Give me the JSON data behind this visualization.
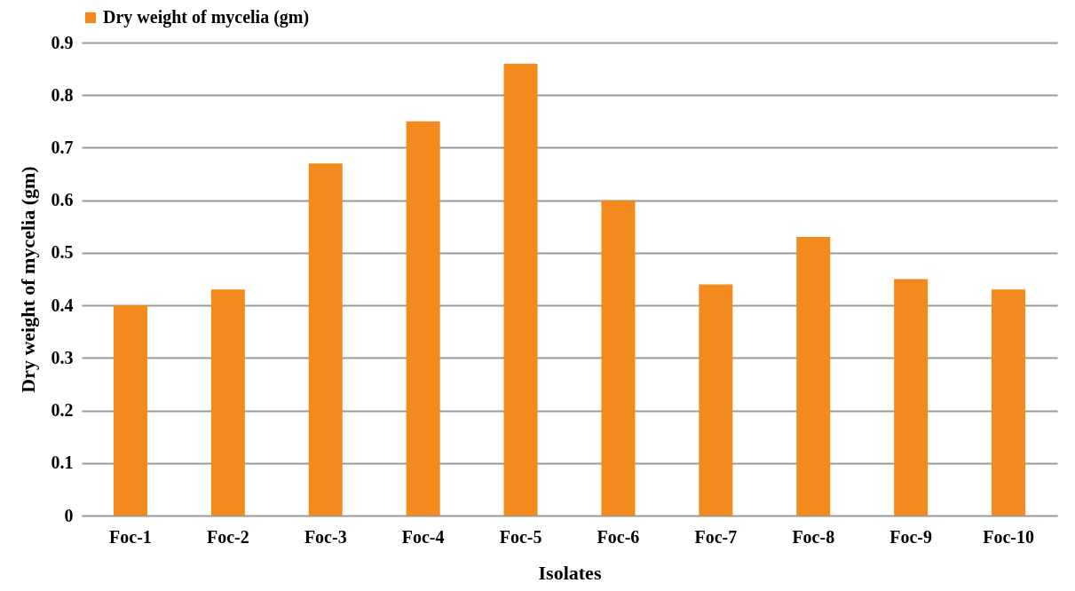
{
  "chart_data": {
    "type": "bar",
    "xlabel": "Isolates",
    "ylabel": "Dry weight of mycelia (gm)",
    "categories": [
      "Foc-1",
      "Foc-2",
      "Foc-3",
      "Foc-4",
      "Foc-5",
      "Foc-6",
      "Foc-7",
      "Foc-8",
      "Foc-9",
      "Foc-10"
    ],
    "series": [
      {
        "name": "Dry weight of mycelia (gm)",
        "color": "#f28a1e",
        "values": [
          0.4,
          0.43,
          0.67,
          0.75,
          0.86,
          0.6,
          0.44,
          0.53,
          0.45,
          0.43
        ]
      }
    ],
    "ylim": [
      0,
      0.9
    ],
    "yticks": [
      0,
      0.1,
      0.2,
      0.3,
      0.4,
      0.5,
      0.6,
      0.7,
      0.8,
      0.9
    ],
    "grid": "y",
    "legend": "top"
  }
}
